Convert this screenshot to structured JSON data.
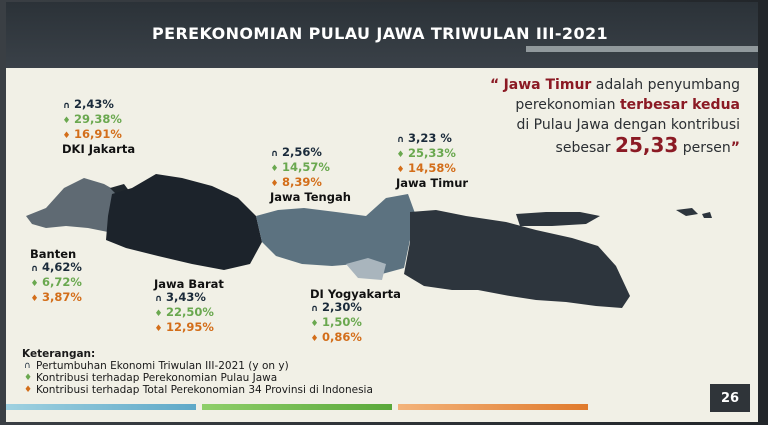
{
  "slide": {
    "title": "PEREKONOMIAN PULAU JAWA TRIWULAN III-2021",
    "page_number": "26"
  },
  "quote": {
    "open": "“",
    "region": "Jawa Timur",
    "part1": " adalah penyumbang",
    "part2a": "perekonomian ",
    "highlight": "terbesar kedua",
    "part3": "di Pulau Jawa dengan kontribusi",
    "part4a": "sebesar ",
    "value": "25,33",
    "part4b": " persen",
    "close": "”"
  },
  "regions": [
    {
      "name": "DKI Jakarta",
      "growth": "2,43%",
      "contrib_java": "29,38%",
      "contrib_national": "16,91%"
    },
    {
      "name": "Jawa Tengah",
      "growth": "2,56%",
      "contrib_java": "14,57%",
      "contrib_national": "8,39%"
    },
    {
      "name": "Jawa Timur",
      "growth": "3,23 %",
      "contrib_java": "25,33%",
      "contrib_national": "14,58%"
    },
    {
      "name": "Banten",
      "growth": "4,62%",
      "contrib_java": "6,72%",
      "contrib_national": "3,87%"
    },
    {
      "name": "Jawa Barat",
      "growth": "3,43%",
      "contrib_java": "22,50%",
      "contrib_national": "12,95%"
    },
    {
      "name": "DI Yogyakarta",
      "growth": "2,30%",
      "contrib_java": "1,50%",
      "contrib_national": "0,86%"
    }
  ],
  "legend": {
    "title": "Keterangan:",
    "growth": "Pertumbuhan Ekonomi Triwulan III-2021 (y on y)",
    "contrib_java": "Kontribusi terhadap Perekonomian Pulau Jawa",
    "contrib_national": "Kontribusi terhadap Total Perekonomian 34 Provinsi di Indonesia"
  },
  "colors": {
    "header_bg": "#2b3238",
    "accent_red": "#8b1a24",
    "growth_icon": "#1a2a3a",
    "java_icon": "#6aa84f",
    "national_icon": "#d36e1a"
  },
  "icons": {
    "growth": "growth-arrow-icon",
    "contrib_java": "java-contribution-icon",
    "contrib_national": "national-contribution-icon"
  }
}
